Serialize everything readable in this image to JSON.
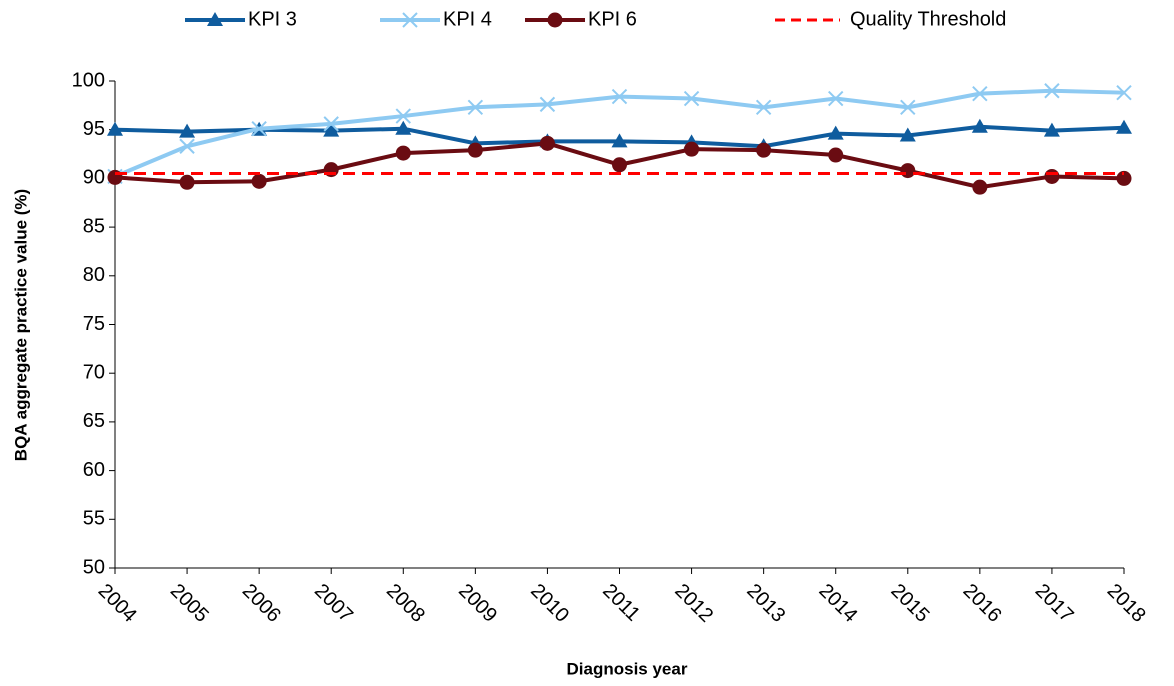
{
  "chart_data": {
    "type": "line",
    "x_label": "Diagnosis year",
    "y_label": "BQA aggregate practice value (%)",
    "categories": [
      "2004",
      "2005",
      "2006",
      "2007",
      "2008",
      "2009",
      "2010",
      "2011",
      "2012",
      "2013",
      "2014",
      "2015",
      "2016",
      "2017",
      "2018"
    ],
    "series": [
      {
        "name": "KPI 3",
        "color": "#0f5c9e",
        "marker": "triangle",
        "dashed": false,
        "values": [
          95.0,
          94.8,
          95.0,
          94.9,
          95.1,
          93.6,
          93.8,
          93.8,
          93.7,
          93.3,
          94.6,
          94.4,
          95.3,
          94.9,
          95.2
        ]
      },
      {
        "name": "KPI 4",
        "color": "#8ecaf2",
        "marker": "x",
        "dashed": false,
        "values": [
          90.2,
          93.3,
          95.1,
          95.6,
          96.4,
          97.3,
          97.6,
          98.4,
          98.2,
          97.3,
          98.2,
          97.3,
          98.7,
          99.0,
          98.8
        ]
      },
      {
        "name": "KPI 6",
        "color": "#6a0c12",
        "marker": "circle",
        "dashed": false,
        "values": [
          90.1,
          89.6,
          89.7,
          90.9,
          92.6,
          92.9,
          93.6,
          91.4,
          93.0,
          92.9,
          92.4,
          90.8,
          89.1,
          90.2,
          90.0
        ]
      },
      {
        "name": "Quality Threshold",
        "color": "#ff0000",
        "marker": "none",
        "dashed": true,
        "values": [
          90.5,
          90.5,
          90.5,
          90.5,
          90.5,
          90.5,
          90.5,
          90.5,
          90.5,
          90.5,
          90.5,
          90.5,
          90.5,
          90.5,
          90.5
        ]
      }
    ],
    "ylim": [
      50,
      100
    ],
    "yticks": [
      50,
      55,
      60,
      65,
      70,
      75,
      80,
      85,
      90,
      95,
      100
    ],
    "legend": "top"
  }
}
